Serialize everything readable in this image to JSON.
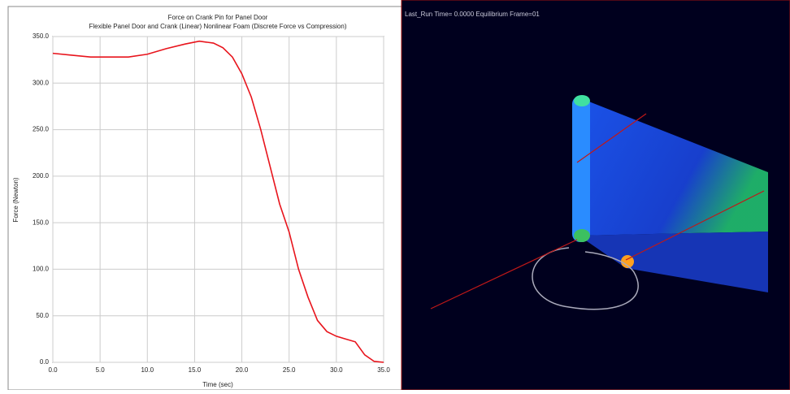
{
  "chart_data": {
    "type": "line",
    "title": "Force on Crank Pin for Panel Door",
    "subtitle": "Flexible Panel Door and Crank (Linear) Nonlinear Foam (Discrete Force vs Compression)",
    "x_label": "Time (sec)",
    "y_label": "Force (Newton)",
    "x": [
      0,
      2,
      4,
      6,
      8,
      10,
      12,
      14,
      15.5,
      17,
      18,
      19,
      20,
      21,
      22,
      23,
      24,
      25,
      26,
      27,
      28,
      29,
      30,
      31,
      32,
      33,
      34,
      35
    ],
    "series": [
      {
        "color": "#e8141c",
        "values": [
          332,
          330,
          328,
          328,
          328,
          331,
          337,
          342,
          345,
          343,
          338,
          328,
          310,
          285,
          250,
          210,
          170,
          140,
          100,
          70,
          45,
          33,
          28,
          25,
          22,
          8,
          1,
          0
        ]
      }
    ],
    "xlim": [
      0,
      35
    ],
    "ylim": [
      0,
      350
    ],
    "xticks": [
      {
        "value": 0,
        "label": "0.0"
      },
      {
        "value": 5,
        "label": "5.0"
      },
      {
        "value": 10,
        "label": "10.0"
      },
      {
        "value": 15,
        "label": "15.0"
      },
      {
        "value": 20,
        "label": "20.0"
      },
      {
        "value": 25,
        "label": "25.0"
      },
      {
        "value": 30,
        "label": "30.0"
      },
      {
        "value": 35,
        "label": "35.0"
      }
    ],
    "yticks": [
      {
        "value": 0,
        "label": "0.0"
      },
      {
        "value": 50,
        "label": "50.0"
      },
      {
        "value": 100,
        "label": "100.0"
      },
      {
        "value": 150,
        "label": "150.0"
      },
      {
        "value": 200,
        "label": "200.0"
      },
      {
        "value": 250,
        "label": "250.0"
      },
      {
        "value": 300,
        "label": "300.0"
      },
      {
        "value": 350,
        "label": "350.0"
      }
    ],
    "grid": true
  },
  "viewport": {
    "caption": "Last_Run   Time= 0.0000  Equilibrium  Frame=01"
  }
}
